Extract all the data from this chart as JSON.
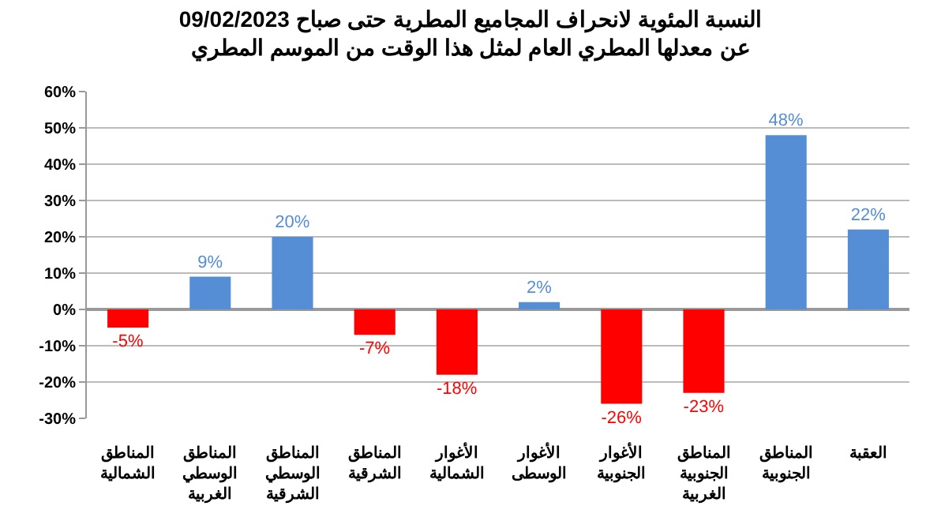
{
  "chart_data": {
    "type": "bar",
    "title": "النسبة المئوية لانحراف المجاميع المطرية حتى صباح 09/02/2023\nعن معدلها المطري العام لمثل هذا الوقت من الموسم المطري",
    "categories": [
      "المناطق\nالشمالية",
      "المناطق\nالوسطي\nالغربية",
      "المناطق\nالوسطي\nالشرقية",
      "المناطق\nالشرقية",
      "الأغوار\nالشمالية",
      "الأغوار\nالوسطى",
      "الأغوار\nالجنوبية",
      "المناطق\nالجنوبية\nالغربية",
      "المناطق\nالجنوبية",
      "العقبة"
    ],
    "values": [
      -5,
      9,
      20,
      -7,
      -18,
      2,
      -26,
      -23,
      48,
      22
    ],
    "colors": [
      "#ff0000",
      "#558ed5",
      "#558ed5",
      "#ff0000",
      "#ff0000",
      "#558ed5",
      "#ff0000",
      "#ff0000",
      "#558ed5",
      "#558ed5"
    ],
    "value_labels": [
      "-5%",
      "9%",
      "20%",
      "-7%",
      "-18%",
      "2%",
      "-26%",
      "-23%",
      "48%",
      "22%"
    ],
    "ylim": [
      -30,
      60
    ],
    "yticks": [
      {
        "value": -30,
        "label": "-30%"
      },
      {
        "value": -20,
        "label": "-20%"
      },
      {
        "value": -10,
        "label": "-10%"
      },
      {
        "value": 0,
        "label": "0%"
      },
      {
        "value": 10,
        "label": "10%"
      },
      {
        "value": 20,
        "label": "20%"
      },
      {
        "value": 30,
        "label": "30%"
      },
      {
        "value": 40,
        "label": "40%"
      },
      {
        "value": 50,
        "label": "50%"
      },
      {
        "value": 60,
        "label": "60%"
      }
    ],
    "grid": "y"
  }
}
